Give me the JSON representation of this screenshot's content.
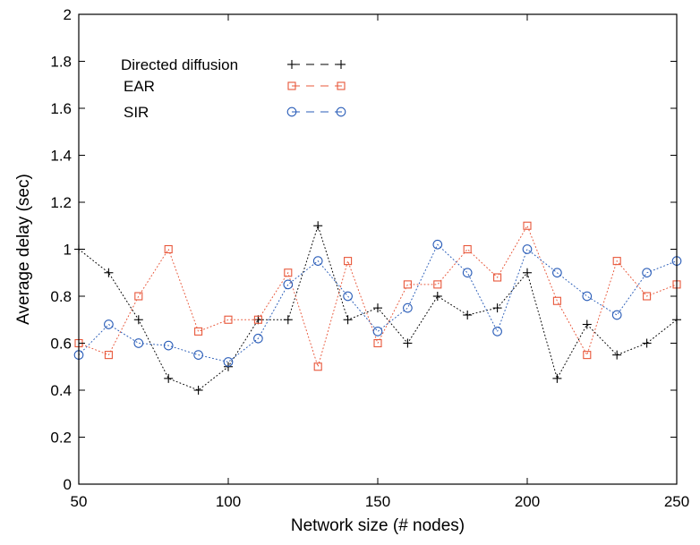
{
  "chart_data": {
    "type": "line",
    "xlabel": "Network size (# nodes)",
    "ylabel": "Average delay (sec)",
    "xlim": [
      50,
      250
    ],
    "ylim": [
      0,
      2
    ],
    "xticks": [
      50,
      100,
      150,
      200,
      250
    ],
    "xtick_labels": [
      "50",
      "100",
      "150",
      "200",
      "250"
    ],
    "yticks": [
      0,
      0.2,
      0.4,
      0.6,
      0.8,
      1,
      1.2,
      1.4,
      1.6,
      1.8,
      2
    ],
    "ytick_labels": [
      "0",
      "0.2",
      "0.4",
      "0.6",
      "0.8",
      "1",
      "1.2",
      "1.4",
      "1.6",
      "1.8",
      "2"
    ],
    "grid": false,
    "legend_position": "top-left",
    "x": [
      50,
      60,
      70,
      80,
      90,
      100,
      110,
      120,
      130,
      140,
      150,
      160,
      170,
      180,
      190,
      200,
      210,
      220,
      230,
      240,
      250
    ],
    "series": [
      {
        "name": "Directed diffusion",
        "marker": "plus",
        "color": "#000000",
        "values": [
          1.0,
          0.9,
          0.7,
          0.45,
          0.4,
          0.5,
          0.7,
          0.7,
          1.1,
          0.7,
          0.75,
          0.6,
          0.8,
          0.72,
          0.75,
          0.9,
          0.45,
          0.68,
          0.55,
          0.6,
          0.7
        ]
      },
      {
        "name": "EAR",
        "marker": "square",
        "color": "#e8573a",
        "values": [
          0.6,
          0.55,
          0.8,
          1.0,
          0.65,
          0.7,
          0.7,
          0.9,
          0.5,
          0.95,
          0.6,
          0.85,
          0.85,
          1.0,
          0.88,
          1.1,
          0.78,
          0.55,
          0.95,
          0.8,
          0.85
        ]
      },
      {
        "name": "SIR",
        "marker": "circle",
        "color": "#2a5db8",
        "values": [
          0.55,
          0.68,
          0.6,
          0.59,
          0.55,
          0.52,
          0.62,
          0.85,
          0.95,
          0.8,
          0.65,
          0.75,
          1.02,
          0.9,
          0.65,
          1.0,
          0.9,
          0.8,
          0.72,
          0.9,
          0.95
        ]
      }
    ]
  }
}
